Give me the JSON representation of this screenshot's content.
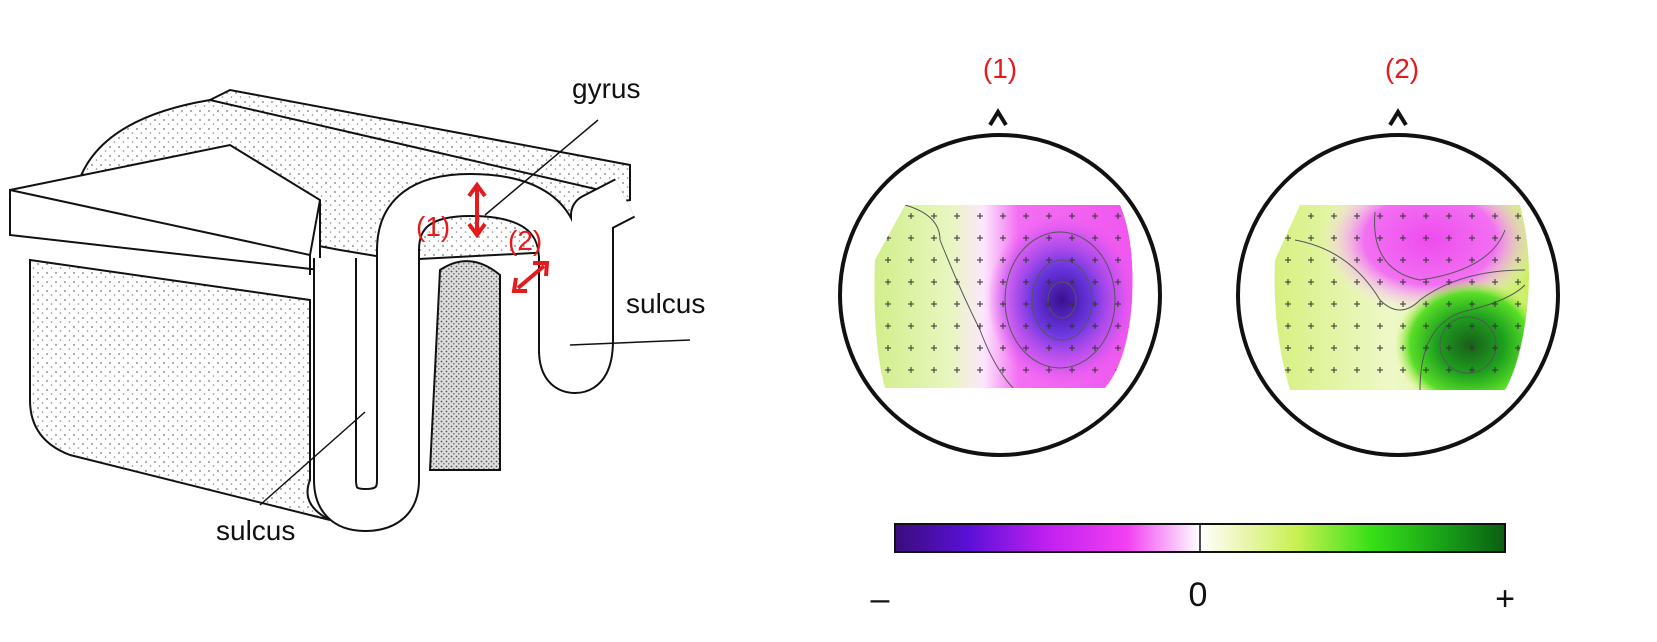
{
  "cortex": {
    "gyrus_label": "gyrus",
    "sulcus_labels": [
      "sulcus",
      "sulcus"
    ],
    "arrow_labels": [
      "(1)",
      "(2)"
    ]
  },
  "topomaps": [
    {
      "title": "(1)"
    },
    {
      "title": "(2)"
    }
  ],
  "colorbar": {
    "min_label": "–",
    "mid_label": "0",
    "max_label": "+"
  }
}
